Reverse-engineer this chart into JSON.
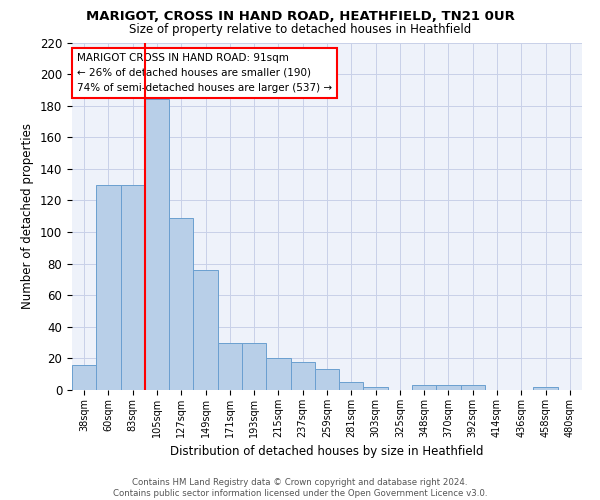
{
  "title1": "MARIGOT, CROSS IN HAND ROAD, HEATHFIELD, TN21 0UR",
  "title2": "Size of property relative to detached houses in Heathfield",
  "xlabel": "Distribution of detached houses by size in Heathfield",
  "ylabel": "Number of detached properties",
  "categories": [
    "38sqm",
    "60sqm",
    "83sqm",
    "105sqm",
    "127sqm",
    "149sqm",
    "171sqm",
    "193sqm",
    "215sqm",
    "237sqm",
    "259sqm",
    "281sqm",
    "303sqm",
    "325sqm",
    "348sqm",
    "370sqm",
    "392sqm",
    "414sqm",
    "436sqm",
    "458sqm",
    "480sqm"
  ],
  "bar_heights": [
    16,
    130,
    130,
    184,
    109,
    76,
    30,
    30,
    20,
    18,
    13,
    5,
    2,
    0,
    3,
    3,
    3,
    0,
    0,
    2,
    0
  ],
  "bar_color": "#b8cfe8",
  "bar_edge_color": "#6a9fd0",
  "red_line_x": 2.5,
  "annotation_line1": "MARIGOT CROSS IN HAND ROAD: 91sqm",
  "annotation_line2": "← 26% of detached houses are smaller (190)",
  "annotation_line3": "74% of semi-detached houses are larger (537) →",
  "annotation_box_color": "white",
  "annotation_box_edge_color": "red",
  "ylim": [
    0,
    220
  ],
  "yticks": [
    0,
    20,
    40,
    60,
    80,
    100,
    120,
    140,
    160,
    180,
    200,
    220
  ],
  "footer1": "Contains HM Land Registry data © Crown copyright and database right 2024.",
  "footer2": "Contains public sector information licensed under the Open Government Licence v3.0.",
  "bg_color": "#eef2fa",
  "grid_color": "#c8d0e8"
}
